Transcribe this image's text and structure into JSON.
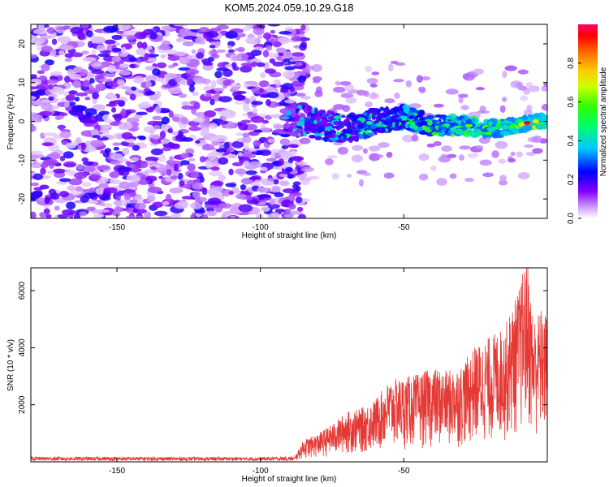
{
  "figure_title": "KOM5.2024.059.10.29.G18",
  "colors": {
    "snr_line": "#e53935",
    "heat_low": "#e6ccff",
    "heat_mid": "#7f00ff",
    "heat_high": "#0000ff"
  },
  "chart_data": [
    {
      "type": "heatmap",
      "xlabel": "Height of straight line (km)",
      "ylabel": "Frequency (Hz)",
      "xlim": [
        -180,
        0
      ],
      "ylim": [
        -25,
        25
      ],
      "x_ticks": [
        -150,
        -100,
        -50
      ],
      "y_ticks": [
        -20,
        -10,
        0,
        10,
        20
      ],
      "colorbar": {
        "label": "Normalized spectral amplitude",
        "range": [
          0.0,
          1.0
        ],
        "ticks": [
          0.0,
          0.2,
          0.4,
          0.6,
          0.8
        ],
        "colormap": "rainbow"
      },
      "signal_track": {
        "description_points": [
          [
            -85,
            0
          ],
          [
            -70,
            -2
          ],
          [
            -60,
            0
          ],
          [
            -50,
            1
          ],
          [
            -40,
            -1
          ],
          [
            -30,
            -1
          ],
          [
            -20,
            -2
          ],
          [
            -10,
            -1
          ],
          [
            -5,
            0
          ],
          [
            0,
            0
          ]
        ],
        "peak_amplitude_at_x": -7,
        "peak_amplitude": 0.95
      }
    },
    {
      "type": "line",
      "xlabel": "Height of straight line (km)",
      "ylabel": "SNR (10 * v/v)",
      "xlim": [
        -180,
        0
      ],
      "ylim": [
        0,
        6800
      ],
      "x_ticks": [
        -150,
        -100,
        -50
      ],
      "y_ticks": [
        2000,
        4000,
        6000
      ],
      "series": [
        {
          "values_envelope": [
            [
              -180,
              150
            ],
            [
              -150,
              150
            ],
            [
              -100,
              140
            ],
            [
              -88,
              160
            ],
            [
              -85,
              700
            ],
            [
              -80,
              900
            ],
            [
              -75,
              1200
            ],
            [
              -70,
              1600
            ],
            [
              -65,
              1700
            ],
            [
              -60,
              2000
            ],
            [
              -55,
              2600
            ],
            [
              -50,
              2700
            ],
            [
              -45,
              2800
            ],
            [
              -40,
              3000
            ],
            [
              -35,
              2900
            ],
            [
              -30,
              3100
            ],
            [
              -25,
              3700
            ],
            [
              -20,
              4000
            ],
            [
              -15,
              4300
            ],
            [
              -10,
              5500
            ],
            [
              -7,
              6700
            ],
            [
              -5,
              4600
            ],
            [
              -2,
              4900
            ],
            [
              0,
              4700
            ]
          ]
        }
      ]
    }
  ]
}
